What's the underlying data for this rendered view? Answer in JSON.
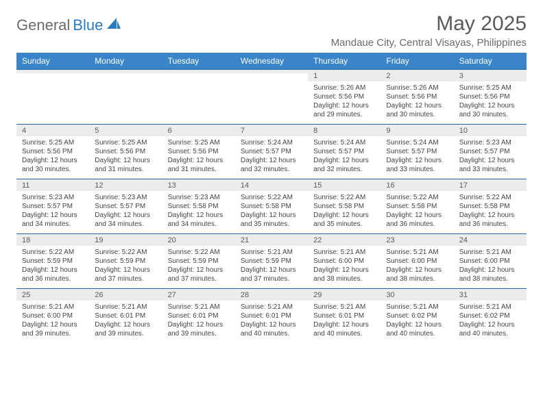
{
  "logo": {
    "part1": "General",
    "part2": "Blue"
  },
  "title": "May 2025",
  "location": "Mandaue City, Central Visayas, Philippines",
  "colors": {
    "header_bg": "#3a85c8",
    "week_border": "#2b6aa3",
    "daynum_bg": "#ececec",
    "text": "#444444",
    "logo_gray": "#6b6b6b",
    "logo_blue": "#2b7bbf"
  },
  "day_names": [
    "Sunday",
    "Monday",
    "Tuesday",
    "Wednesday",
    "Thursday",
    "Friday",
    "Saturday"
  ],
  "weeks": [
    [
      {
        "n": "",
        "sr": "",
        "ss": "",
        "dl": ""
      },
      {
        "n": "",
        "sr": "",
        "ss": "",
        "dl": ""
      },
      {
        "n": "",
        "sr": "",
        "ss": "",
        "dl": ""
      },
      {
        "n": "",
        "sr": "",
        "ss": "",
        "dl": ""
      },
      {
        "n": "1",
        "sr": "Sunrise: 5:26 AM",
        "ss": "Sunset: 5:56 PM",
        "dl": "Daylight: 12 hours and 29 minutes."
      },
      {
        "n": "2",
        "sr": "Sunrise: 5:26 AM",
        "ss": "Sunset: 5:56 PM",
        "dl": "Daylight: 12 hours and 30 minutes."
      },
      {
        "n": "3",
        "sr": "Sunrise: 5:25 AM",
        "ss": "Sunset: 5:56 PM",
        "dl": "Daylight: 12 hours and 30 minutes."
      }
    ],
    [
      {
        "n": "4",
        "sr": "Sunrise: 5:25 AM",
        "ss": "Sunset: 5:56 PM",
        "dl": "Daylight: 12 hours and 30 minutes."
      },
      {
        "n": "5",
        "sr": "Sunrise: 5:25 AM",
        "ss": "Sunset: 5:56 PM",
        "dl": "Daylight: 12 hours and 31 minutes."
      },
      {
        "n": "6",
        "sr": "Sunrise: 5:25 AM",
        "ss": "Sunset: 5:56 PM",
        "dl": "Daylight: 12 hours and 31 minutes."
      },
      {
        "n": "7",
        "sr": "Sunrise: 5:24 AM",
        "ss": "Sunset: 5:57 PM",
        "dl": "Daylight: 12 hours and 32 minutes."
      },
      {
        "n": "8",
        "sr": "Sunrise: 5:24 AM",
        "ss": "Sunset: 5:57 PM",
        "dl": "Daylight: 12 hours and 32 minutes."
      },
      {
        "n": "9",
        "sr": "Sunrise: 5:24 AM",
        "ss": "Sunset: 5:57 PM",
        "dl": "Daylight: 12 hours and 33 minutes."
      },
      {
        "n": "10",
        "sr": "Sunrise: 5:23 AM",
        "ss": "Sunset: 5:57 PM",
        "dl": "Daylight: 12 hours and 33 minutes."
      }
    ],
    [
      {
        "n": "11",
        "sr": "Sunrise: 5:23 AM",
        "ss": "Sunset: 5:57 PM",
        "dl": "Daylight: 12 hours and 34 minutes."
      },
      {
        "n": "12",
        "sr": "Sunrise: 5:23 AM",
        "ss": "Sunset: 5:57 PM",
        "dl": "Daylight: 12 hours and 34 minutes."
      },
      {
        "n": "13",
        "sr": "Sunrise: 5:23 AM",
        "ss": "Sunset: 5:58 PM",
        "dl": "Daylight: 12 hours and 34 minutes."
      },
      {
        "n": "14",
        "sr": "Sunrise: 5:22 AM",
        "ss": "Sunset: 5:58 PM",
        "dl": "Daylight: 12 hours and 35 minutes."
      },
      {
        "n": "15",
        "sr": "Sunrise: 5:22 AM",
        "ss": "Sunset: 5:58 PM",
        "dl": "Daylight: 12 hours and 35 minutes."
      },
      {
        "n": "16",
        "sr": "Sunrise: 5:22 AM",
        "ss": "Sunset: 5:58 PM",
        "dl": "Daylight: 12 hours and 36 minutes."
      },
      {
        "n": "17",
        "sr": "Sunrise: 5:22 AM",
        "ss": "Sunset: 5:58 PM",
        "dl": "Daylight: 12 hours and 36 minutes."
      }
    ],
    [
      {
        "n": "18",
        "sr": "Sunrise: 5:22 AM",
        "ss": "Sunset: 5:59 PM",
        "dl": "Daylight: 12 hours and 36 minutes."
      },
      {
        "n": "19",
        "sr": "Sunrise: 5:22 AM",
        "ss": "Sunset: 5:59 PM",
        "dl": "Daylight: 12 hours and 37 minutes."
      },
      {
        "n": "20",
        "sr": "Sunrise: 5:22 AM",
        "ss": "Sunset: 5:59 PM",
        "dl": "Daylight: 12 hours and 37 minutes."
      },
      {
        "n": "21",
        "sr": "Sunrise: 5:21 AM",
        "ss": "Sunset: 5:59 PM",
        "dl": "Daylight: 12 hours and 37 minutes."
      },
      {
        "n": "22",
        "sr": "Sunrise: 5:21 AM",
        "ss": "Sunset: 6:00 PM",
        "dl": "Daylight: 12 hours and 38 minutes."
      },
      {
        "n": "23",
        "sr": "Sunrise: 5:21 AM",
        "ss": "Sunset: 6:00 PM",
        "dl": "Daylight: 12 hours and 38 minutes."
      },
      {
        "n": "24",
        "sr": "Sunrise: 5:21 AM",
        "ss": "Sunset: 6:00 PM",
        "dl": "Daylight: 12 hours and 38 minutes."
      }
    ],
    [
      {
        "n": "25",
        "sr": "Sunrise: 5:21 AM",
        "ss": "Sunset: 6:00 PM",
        "dl": "Daylight: 12 hours and 39 minutes."
      },
      {
        "n": "26",
        "sr": "Sunrise: 5:21 AM",
        "ss": "Sunset: 6:01 PM",
        "dl": "Daylight: 12 hours and 39 minutes."
      },
      {
        "n": "27",
        "sr": "Sunrise: 5:21 AM",
        "ss": "Sunset: 6:01 PM",
        "dl": "Daylight: 12 hours and 39 minutes."
      },
      {
        "n": "28",
        "sr": "Sunrise: 5:21 AM",
        "ss": "Sunset: 6:01 PM",
        "dl": "Daylight: 12 hours and 40 minutes."
      },
      {
        "n": "29",
        "sr": "Sunrise: 5:21 AM",
        "ss": "Sunset: 6:01 PM",
        "dl": "Daylight: 12 hours and 40 minutes."
      },
      {
        "n": "30",
        "sr": "Sunrise: 5:21 AM",
        "ss": "Sunset: 6:02 PM",
        "dl": "Daylight: 12 hours and 40 minutes."
      },
      {
        "n": "31",
        "sr": "Sunrise: 5:21 AM",
        "ss": "Sunset: 6:02 PM",
        "dl": "Daylight: 12 hours and 40 minutes."
      }
    ]
  ]
}
